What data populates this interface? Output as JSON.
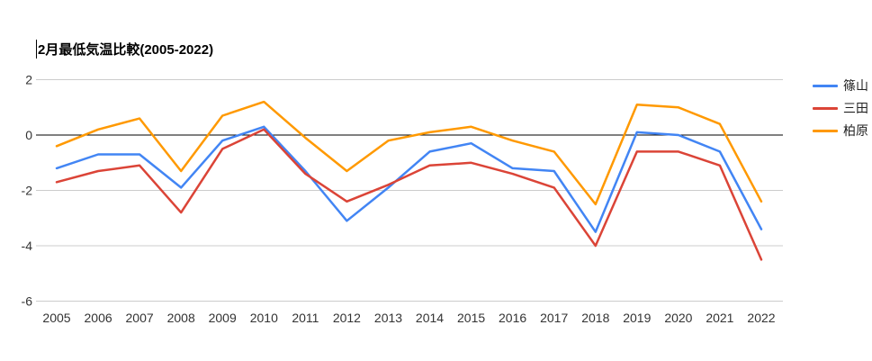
{
  "title_cursor": true,
  "chart_data": {
    "type": "line",
    "title": "2月最低気温比較(2005-2022)",
    "x": [
      2005,
      2006,
      2007,
      2008,
      2009,
      2010,
      2011,
      2012,
      2013,
      2014,
      2015,
      2016,
      2017,
      2018,
      2019,
      2020,
      2021,
      2022
    ],
    "series": [
      {
        "name": "篠山",
        "color": "#4285F4",
        "values": [
          -1.2,
          -0.7,
          -0.7,
          -1.9,
          -0.2,
          0.3,
          -1.3,
          -3.1,
          -1.9,
          -0.6,
          -0.3,
          -1.2,
          -1.3,
          -3.5,
          0.1,
          0.0,
          -0.6,
          -3.4
        ]
      },
      {
        "name": "三田",
        "color": "#DB4437",
        "values": [
          -1.7,
          -1.3,
          -1.1,
          -2.8,
          -0.5,
          0.2,
          -1.4,
          -2.4,
          -1.8,
          -1.1,
          -1.0,
          -1.4,
          -1.9,
          -4.0,
          -0.6,
          -0.6,
          -1.1,
          -4.5
        ]
      },
      {
        "name": "柏原",
        "color": "#FF9900",
        "values": [
          -0.4,
          0.2,
          0.6,
          -1.3,
          0.7,
          1.2,
          -0.1,
          -1.3,
          -0.2,
          0.1,
          0.3,
          -0.2,
          -0.6,
          -2.5,
          1.1,
          1.0,
          0.4,
          -2.4
        ]
      }
    ],
    "xlabel": "",
    "ylabel": "",
    "ylim": [
      -6,
      2
    ],
    "yticks": [
      2,
      0,
      -2,
      -4,
      -6
    ],
    "grid": true,
    "zero_line": true,
    "legend_position": "right"
  },
  "colors": {
    "gridline": "#cccccc",
    "zero_line": "#000000",
    "tick_label": "#333333",
    "title": "#000000"
  }
}
